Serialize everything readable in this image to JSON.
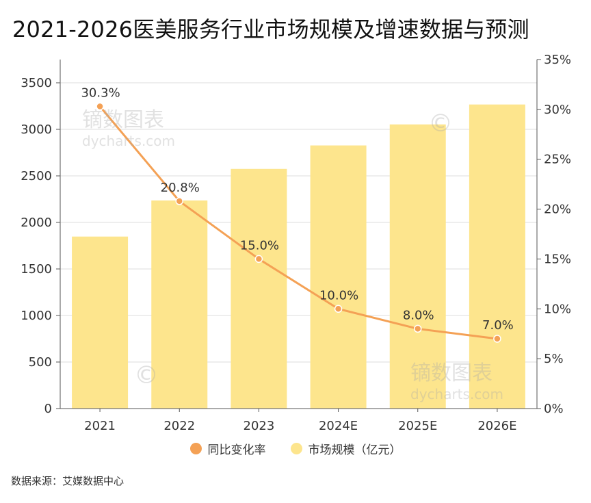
{
  "title": "2021-2026医美服务行业市场规模及增速数据与预测",
  "source": "数据来源：艾媒数据中心",
  "watermark": {
    "text_cn": "镝数图表",
    "text_en": "dycharts.com",
    "symbol": "©"
  },
  "colors": {
    "bar": "#FDE58D",
    "line": "#F4A155",
    "grid": "#dddddd",
    "axis": "#555555"
  },
  "chart_data": {
    "type": "bar",
    "categories": [
      "2021",
      "2022",
      "2023",
      "2024E",
      "2025E",
      "2026E"
    ],
    "series": [
      {
        "name": "市场规模（亿元）",
        "type": "bar",
        "axis": "left",
        "values": [
          1848,
          2236,
          2575,
          2827,
          3053,
          3267
        ]
      },
      {
        "name": "同比变化率",
        "type": "line",
        "axis": "right",
        "values": [
          30.3,
          20.8,
          15.0,
          10.0,
          8.0,
          7.0
        ],
        "labels": [
          "30.3%",
          "20.8%",
          "15.0%",
          "10.0%",
          "8.0%",
          "7.0%"
        ]
      }
    ],
    "y_left": {
      "ylim": [
        0,
        3750
      ],
      "ticks": [
        0,
        500,
        1000,
        1500,
        2000,
        2500,
        3000,
        3500
      ]
    },
    "y_right": {
      "ylim": [
        0,
        35
      ],
      "ticks": [
        0,
        5,
        10,
        15,
        20,
        25,
        30,
        35
      ],
      "tick_labels": [
        "0%",
        "5%",
        "10%",
        "15%",
        "20%",
        "25%",
        "30%",
        "35%"
      ]
    },
    "grid": true,
    "legend_position": "bottom"
  }
}
